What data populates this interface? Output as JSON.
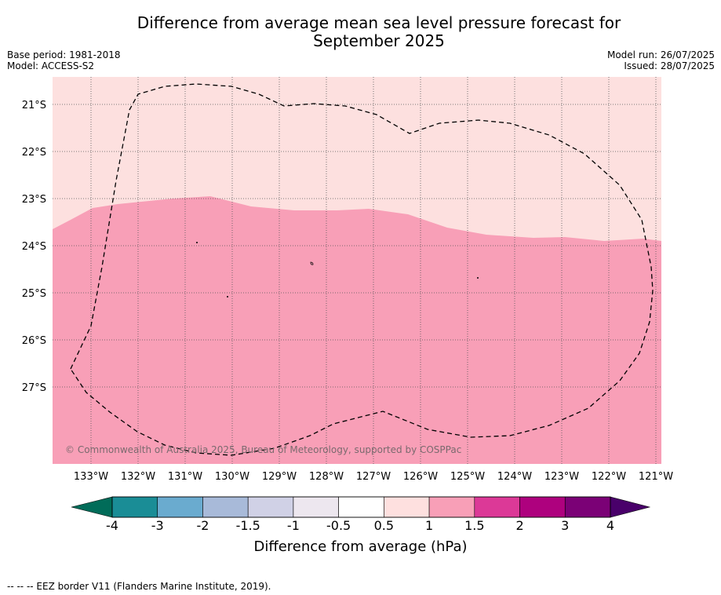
{
  "title_line1": "Difference from average mean sea level pressure forecast for",
  "title_line2": "September 2025",
  "base_period": "Base period: 1981-2018",
  "model": "Model: ACCESS-S2",
  "model_run": "Model run: 26/07/2025",
  "issued": "Issued: 28/07/2025",
  "copyright": "© Commonwealth of Australia 2025, Bureau of Meteorology, supported by COSPPac",
  "footer_note": "--  --  -- EEZ border V11 (Flanders Marine Institute, 2019).",
  "lon_labels": [
    "133°W",
    "132°W",
    "131°W",
    "130°W",
    "129°W",
    "128°W",
    "127°W",
    "126°W",
    "125°W",
    "124°W",
    "123°W",
    "122°W",
    "121°W"
  ],
  "lat_labels": [
    "21°S",
    "22°S",
    "23°S",
    "24°S",
    "25°S",
    "26°S",
    "27°S"
  ],
  "colorbar": {
    "title": "Difference from average (hPa)",
    "ticks": [
      "-4",
      "-3",
      "-2",
      "-1.5",
      "-1",
      "-0.5",
      "0.5",
      "1",
      "1.5",
      "2",
      "3",
      "4"
    ],
    "colors": [
      "#1a8d96",
      "#6aabcf",
      "#a8bad9",
      "#d0d1e6",
      "#ede7ef",
      "#ffffff",
      "#fee0df",
      "#f89fb7",
      "#dc3997",
      "#ae017e",
      "#7b0176"
    ],
    "under_color": "#016c59",
    "over_color": "#49006a"
  },
  "map_colors": {
    "zone_0_5_to_1": "#fde0df",
    "zone_1_to_1_5": "#f89fb7"
  }
}
